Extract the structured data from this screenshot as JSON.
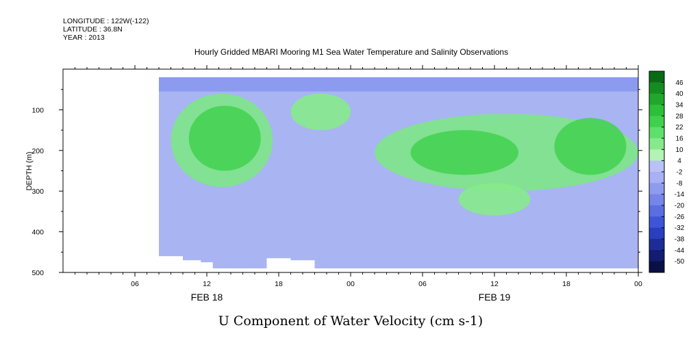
{
  "header": {
    "longitude": "LONGITUDE : 122W(-122)",
    "latitude": "LATITUDE : 36.8N",
    "year": "YEAR : 2013"
  },
  "chart_data": {
    "type": "heatmap",
    "title": "Hourly Gridded MBARI Mooring M1 Sea Water Temperature and Salinity Observations",
    "variable_label": "U Component of Water Velocity (cm s-1)",
    "ylabel": "DEPTH (m)",
    "y_reversed": true,
    "ylim": [
      500,
      0
    ],
    "y_ticks": [
      100,
      200,
      300,
      400,
      500
    ],
    "xlim_hours": [
      0,
      48
    ],
    "x_ticks": [
      {
        "hour": 6,
        "label": "06"
      },
      {
        "hour": 12,
        "label": "12"
      },
      {
        "hour": 18,
        "label": "18"
      },
      {
        "hour": 24,
        "label": "00"
      },
      {
        "hour": 30,
        "label": "06"
      },
      {
        "hour": 36,
        "label": "12"
      },
      {
        "hour": 42,
        "label": "18"
      },
      {
        "hour": 48,
        "label": "00"
      }
    ],
    "day_labels": [
      {
        "hour": 12,
        "label": "FEB 18"
      },
      {
        "hour": 36,
        "label": "FEB 19"
      }
    ],
    "data_extent": {
      "hour_start": 8,
      "hour_end": 48,
      "depth_top": 20,
      "depth_bottom": 490
    },
    "colorbar": {
      "levels": [
        -50,
        -44,
        -38,
        -32,
        -26,
        -20,
        -14,
        -8,
        -2,
        4,
        10,
        16,
        22,
        28,
        34,
        40,
        46
      ],
      "labels": [
        "46",
        "40",
        "34",
        "28",
        "22",
        "16",
        "10",
        "4",
        "-2",
        "-8",
        "-14",
        "-20",
        "-26",
        "-32",
        "-38",
        "-44",
        "-50"
      ],
      "colors": [
        "#0a6b16",
        "#158c22",
        "#1fa82c",
        "#2cbf3a",
        "#3fd04e",
        "#5ee06a",
        "#86ea8c",
        "#b4f2b5",
        "#b9c2f7",
        "#a7b1f3",
        "#8f9bef",
        "#7685e9",
        "#5a6ee2",
        "#3f55d8",
        "#2a3fbf",
        "#1d2c98",
        "#121c70",
        "#0a1046"
      ]
    },
    "field_regions": [
      {
        "depth_range": [
          20,
          60
        ],
        "hour_range": [
          8,
          48
        ],
        "approx_value": -4
      },
      {
        "depth_range": [
          60,
          280
        ],
        "hour_range": [
          9,
          18
        ],
        "approx_value": 10
      },
      {
        "depth_range": [
          120,
          300
        ],
        "hour_range": [
          26,
          48
        ],
        "approx_value": 10
      },
      {
        "depth_range": [
          300,
          490
        ],
        "hour_range": [
          8,
          48
        ],
        "approx_value": -4
      }
    ]
  }
}
